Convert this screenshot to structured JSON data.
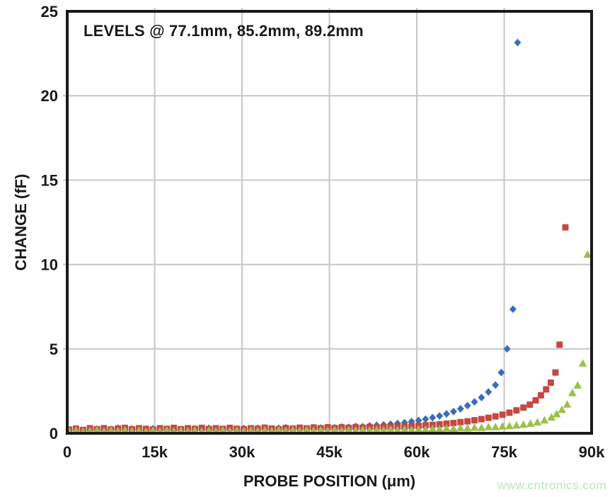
{
  "chart_data": {
    "type": "scatter",
    "annotation": "LEVELS @ 77.1mm, 85.2mm, 89.2mm",
    "xlabel": "PROBE POSITION (μm)",
    "ylabel": "CHANGE (fF)",
    "watermark": "www.cntronics.com",
    "xlim": [
      0,
      90000
    ],
    "ylim": [
      0,
      25
    ],
    "grid": true,
    "legend_position": "none",
    "colors": {
      "grid": "#c6c6c6",
      "frame": "#1a1a1a",
      "text": "#1a1a1a",
      "watermark": "#b9e2ba"
    },
    "x_ticks": [
      {
        "value": 0,
        "label": "0"
      },
      {
        "value": 15000,
        "label": "15k"
      },
      {
        "value": 30000,
        "label": "30k"
      },
      {
        "value": 45000,
        "label": "45k"
      },
      {
        "value": 60000,
        "label": "60k"
      },
      {
        "value": 75000,
        "label": "75k"
      },
      {
        "value": 90000,
        "label": "90k"
      }
    ],
    "y_ticks": [
      {
        "value": 0,
        "label": "0"
      },
      {
        "value": 5,
        "label": "5"
      },
      {
        "value": 10,
        "label": "10"
      },
      {
        "value": 15,
        "label": "15"
      },
      {
        "value": 20,
        "label": "20"
      },
      {
        "value": 25,
        "label": "25"
      }
    ],
    "series": [
      {
        "name": "Level @ 77.1mm",
        "marker": "diamond",
        "color": "#3a6eb5",
        "points": [
          [
            300,
            0.18
          ],
          [
            1500,
            0.22
          ],
          [
            2700,
            0.12
          ],
          [
            3900,
            0.2
          ],
          [
            5100,
            0.26
          ],
          [
            6300,
            0.15
          ],
          [
            7500,
            0.24
          ],
          [
            8700,
            0.3
          ],
          [
            9900,
            0.17
          ],
          [
            11100,
            0.25
          ],
          [
            12300,
            0.2
          ],
          [
            13500,
            0.14
          ],
          [
            14700,
            0.27
          ],
          [
            15900,
            0.2
          ],
          [
            17100,
            0.25
          ],
          [
            18300,
            0.16
          ],
          [
            19500,
            0.23
          ],
          [
            20700,
            0.15
          ],
          [
            21900,
            0.26
          ],
          [
            23100,
            0.2
          ],
          [
            24300,
            0.3
          ],
          [
            25500,
            0.22
          ],
          [
            26700,
            0.17
          ],
          [
            27900,
            0.26
          ],
          [
            29100,
            0.2
          ],
          [
            30300,
            0.28
          ],
          [
            31500,
            0.22
          ],
          [
            32700,
            0.3
          ],
          [
            33900,
            0.25
          ],
          [
            35100,
            0.2
          ],
          [
            36300,
            0.3
          ],
          [
            37500,
            0.33
          ],
          [
            38700,
            0.26
          ],
          [
            39900,
            0.3
          ],
          [
            41100,
            0.28
          ],
          [
            42300,
            0.33
          ],
          [
            43500,
            0.31
          ],
          [
            44700,
            0.35
          ],
          [
            45900,
            0.33
          ],
          [
            47100,
            0.38
          ],
          [
            48300,
            0.36
          ],
          [
            49500,
            0.41
          ],
          [
            50700,
            0.39
          ],
          [
            51900,
            0.44
          ],
          [
            53100,
            0.47
          ],
          [
            54300,
            0.5
          ],
          [
            55500,
            0.54
          ],
          [
            56700,
            0.58
          ],
          [
            57900,
            0.63
          ],
          [
            59100,
            0.69
          ],
          [
            60300,
            0.76
          ],
          [
            61500,
            0.84
          ],
          [
            62700,
            0.93
          ],
          [
            63900,
            1.03
          ],
          [
            65100,
            1.15
          ],
          [
            66300,
            1.29
          ],
          [
            67500,
            1.45
          ],
          [
            68700,
            1.64
          ],
          [
            69900,
            1.86
          ],
          [
            71100,
            2.12
          ],
          [
            72300,
            2.45
          ],
          [
            73500,
            2.86
          ],
          [
            74500,
            3.6
          ],
          [
            75500,
            5.0
          ],
          [
            76500,
            7.35
          ],
          [
            77300,
            23.15
          ]
        ]
      },
      {
        "name": "Level @ 85.2mm",
        "marker": "square",
        "color": "#c54842",
        "points": [
          [
            300,
            0.22
          ],
          [
            1500,
            0.28
          ],
          [
            2700,
            0.2
          ],
          [
            3900,
            0.3
          ],
          [
            5100,
            0.24
          ],
          [
            6300,
            0.3
          ],
          [
            7500,
            0.22
          ],
          [
            8700,
            0.28
          ],
          [
            9900,
            0.32
          ],
          [
            11100,
            0.24
          ],
          [
            12300,
            0.3
          ],
          [
            13500,
            0.26
          ],
          [
            14700,
            0.22
          ],
          [
            15900,
            0.3
          ],
          [
            17100,
            0.26
          ],
          [
            18300,
            0.32
          ],
          [
            19500,
            0.24
          ],
          [
            20700,
            0.3
          ],
          [
            21900,
            0.26
          ],
          [
            23100,
            0.32
          ],
          [
            24300,
            0.25
          ],
          [
            25500,
            0.3
          ],
          [
            26700,
            0.26
          ],
          [
            27900,
            0.32
          ],
          [
            29100,
            0.27
          ],
          [
            30300,
            0.24
          ],
          [
            31500,
            0.3
          ],
          [
            32700,
            0.27
          ],
          [
            33900,
            0.33
          ],
          [
            35100,
            0.28
          ],
          [
            36300,
            0.24
          ],
          [
            37500,
            0.31
          ],
          [
            38700,
            0.28
          ],
          [
            39900,
            0.33
          ],
          [
            41100,
            0.29
          ],
          [
            42300,
            0.34
          ],
          [
            43500,
            0.3
          ],
          [
            44700,
            0.35
          ],
          [
            45900,
            0.31
          ],
          [
            47100,
            0.35
          ],
          [
            48300,
            0.32
          ],
          [
            49500,
            0.36
          ],
          [
            50700,
            0.33
          ],
          [
            51900,
            0.37
          ],
          [
            53100,
            0.34
          ],
          [
            54300,
            0.38
          ],
          [
            55500,
            0.36
          ],
          [
            56700,
            0.4
          ],
          [
            57900,
            0.38
          ],
          [
            59100,
            0.42
          ],
          [
            60300,
            0.44
          ],
          [
            61500,
            0.47
          ],
          [
            62700,
            0.5
          ],
          [
            63900,
            0.53
          ],
          [
            65100,
            0.57
          ],
          [
            66300,
            0.61
          ],
          [
            67500,
            0.66
          ],
          [
            68700,
            0.71
          ],
          [
            69900,
            0.77
          ],
          [
            71100,
            0.84
          ],
          [
            72300,
            0.92
          ],
          [
            73500,
            1.0
          ],
          [
            74700,
            1.1
          ],
          [
            75900,
            1.22
          ],
          [
            77100,
            1.36
          ],
          [
            78300,
            1.52
          ],
          [
            79400,
            1.7
          ],
          [
            80400,
            1.95
          ],
          [
            81300,
            2.25
          ],
          [
            82200,
            2.6
          ],
          [
            83000,
            3.0
          ],
          [
            83800,
            3.6
          ],
          [
            84500,
            5.25
          ],
          [
            85500,
            12.2
          ]
        ]
      },
      {
        "name": "Level @ 89.2mm",
        "marker": "triangle",
        "color": "#9cbf4b",
        "points": [
          [
            300,
            0.14
          ],
          [
            1500,
            0.18
          ],
          [
            2700,
            0.12
          ],
          [
            3900,
            0.16
          ],
          [
            5100,
            0.2
          ],
          [
            6300,
            0.13
          ],
          [
            7500,
            0.18
          ],
          [
            8700,
            0.15
          ],
          [
            9900,
            0.2
          ],
          [
            11100,
            0.14
          ],
          [
            12300,
            0.18
          ],
          [
            13500,
            0.12
          ],
          [
            14700,
            0.17
          ],
          [
            15900,
            0.14
          ],
          [
            17100,
            0.19
          ],
          [
            18300,
            0.13
          ],
          [
            19500,
            0.17
          ],
          [
            20700,
            0.14
          ],
          [
            21900,
            0.18
          ],
          [
            23100,
            0.13
          ],
          [
            24300,
            0.17
          ],
          [
            25500,
            0.14
          ],
          [
            26700,
            0.19
          ],
          [
            27900,
            0.15
          ],
          [
            29100,
            0.18
          ],
          [
            30300,
            0.14
          ],
          [
            31500,
            0.18
          ],
          [
            32700,
            0.15
          ],
          [
            33900,
            0.19
          ],
          [
            35100,
            0.15
          ],
          [
            36300,
            0.2
          ],
          [
            37500,
            0.16
          ],
          [
            38700,
            0.2
          ],
          [
            39900,
            0.16
          ],
          [
            41100,
            0.21
          ],
          [
            42300,
            0.17
          ],
          [
            43500,
            0.21
          ],
          [
            44700,
            0.17
          ],
          [
            45900,
            0.22
          ],
          [
            47100,
            0.18
          ],
          [
            48300,
            0.22
          ],
          [
            49500,
            0.18
          ],
          [
            50700,
            0.23
          ],
          [
            51900,
            0.19
          ],
          [
            53100,
            0.23
          ],
          [
            54300,
            0.2
          ],
          [
            55500,
            0.24
          ],
          [
            56700,
            0.21
          ],
          [
            57900,
            0.25
          ],
          [
            59100,
            0.22
          ],
          [
            60300,
            0.26
          ],
          [
            61500,
            0.24
          ],
          [
            62700,
            0.28
          ],
          [
            63900,
            0.26
          ],
          [
            65100,
            0.3
          ],
          [
            66300,
            0.28
          ],
          [
            67500,
            0.32
          ],
          [
            68700,
            0.31
          ],
          [
            69900,
            0.35
          ],
          [
            71100,
            0.34
          ],
          [
            72300,
            0.38
          ],
          [
            73500,
            0.38
          ],
          [
            74700,
            0.42
          ],
          [
            75900,
            0.44
          ],
          [
            77100,
            0.48
          ],
          [
            78300,
            0.52
          ],
          [
            79500,
            0.58
          ],
          [
            80700,
            0.66
          ],
          [
            81900,
            0.78
          ],
          [
            83100,
            0.95
          ],
          [
            84000,
            1.15
          ],
          [
            84900,
            1.4
          ],
          [
            85800,
            1.72
          ],
          [
            86700,
            2.4
          ],
          [
            87600,
            2.85
          ],
          [
            88500,
            4.15
          ],
          [
            89300,
            10.6
          ]
        ]
      }
    ]
  }
}
